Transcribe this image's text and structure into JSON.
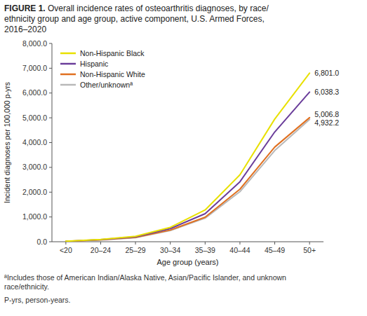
{
  "chart_data": {
    "type": "line",
    "title": "FIGURE 1. Overall incidence rates of osteoarthritis diagnoses, by race/\nethnicity group and age group, active component, U.S. Armed Forces,\n2016–2020",
    "x_label": "Age group (years)",
    "y_label": "Incident diagnoses per 100,000 p-yrs",
    "categories": [
      "<20",
      "20–24",
      "25–29",
      "30–34",
      "35–39",
      "40–44",
      "45–49",
      "50+"
    ],
    "series": [
      {
        "name": "Non-Hispanic Black",
        "color": "#e8e000",
        "values": [
          18,
          95,
          220,
          580,
          1280,
          2700,
          4950,
          6801.0
        ],
        "value_labels": [
          null,
          null,
          null,
          null,
          null,
          null,
          null,
          "6,801.0"
        ]
      },
      {
        "name": "Hispanic",
        "color": "#6a3d9a",
        "values": [
          15,
          85,
          200,
          530,
          1130,
          2420,
          4430,
          6038.3
        ],
        "value_labels": [
          null,
          null,
          null,
          null,
          null,
          null,
          null,
          "6,038.3"
        ]
      },
      {
        "name": "Non-Hispanic White",
        "color": "#e07020",
        "values": [
          12,
          75,
          175,
          470,
          990,
          2120,
          3820,
          5006.8
        ],
        "value_labels": [
          null,
          null,
          null,
          null,
          null,
          null,
          null,
          "5,006.8"
        ]
      },
      {
        "name": "Other/unknownª",
        "color": "#b8b8b8",
        "values": [
          10,
          70,
          165,
          450,
          950,
          2020,
          3680,
          4932.2
        ],
        "value_labels": [
          null,
          null,
          null,
          null,
          null,
          null,
          null,
          "4,932.2"
        ]
      }
    ],
    "ylim": [
      0,
      8000
    ],
    "yticks": [
      {
        "value": 0,
        "label": "0.0"
      },
      {
        "value": 1000,
        "label": "1,000.0"
      },
      {
        "value": 2000,
        "label": "2,000.0"
      },
      {
        "value": 3000,
        "label": "3,000.0"
      },
      {
        "value": 4000,
        "label": "4,000.0"
      },
      {
        "value": 5000,
        "label": "5,000.0"
      },
      {
        "value": 6000,
        "label": "6,000.0"
      },
      {
        "value": 7000,
        "label": "7,000.0"
      },
      {
        "value": 8000,
        "label": "8,000.0"
      }
    ],
    "grid": false,
    "legend": "upper left",
    "data_labels": true,
    "annotations": [
      "ªIncludes those of American Indian/Alaska Native, Asian/Pacific Islander, and unknown\nrace/ethnicity.",
      "P-yrs, person-years."
    ]
  }
}
